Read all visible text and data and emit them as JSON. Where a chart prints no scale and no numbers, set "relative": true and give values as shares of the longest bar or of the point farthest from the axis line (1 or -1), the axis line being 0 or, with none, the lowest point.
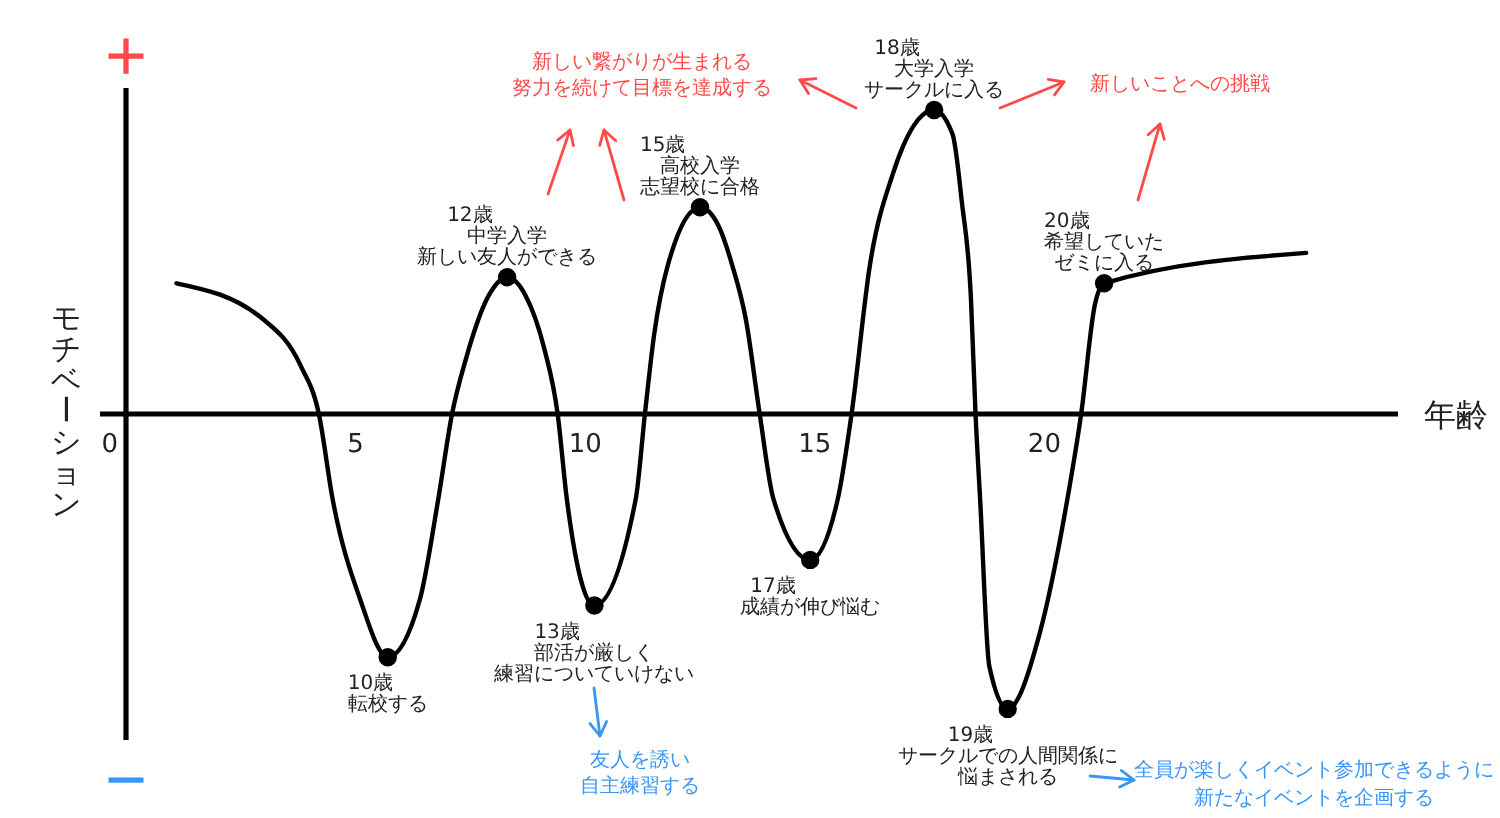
{
  "chart_data": {
    "type": "line",
    "relative": true,
    "xlabel": "年齢",
    "ylabel": "モチベーション",
    "xlim": [
      0,
      27.7
    ],
    "xticks": [
      0,
      5,
      10,
      15,
      20
    ],
    "series": [
      {
        "color": "#000000",
        "marker": "none",
        "x": [
          1.1,
          3.0,
          3.8,
          4.2,
          4.5,
          5.1,
          5.7,
          6.4,
          6.8,
          7.1,
          7.4,
          7.9,
          8.3,
          8.7,
          9.1,
          9.4,
          9.6,
          10.2,
          11.1,
          11.3,
          11.5,
          11.8,
          12.5,
          12.9,
          13.2,
          13.5,
          13.8,
          14.1,
          14.9,
          15.5,
          15.8,
          16.2,
          16.7,
          17.6,
          18.0,
          18.2,
          18.4,
          18.5,
          18.6,
          18.8,
          19.2,
          19.9,
          20.5,
          20.8,
          21.1,
          21.3,
          25.7
        ],
        "values": [
          0.43,
          0.31,
          0.16,
          0,
          -0.28,
          -0.61,
          -0.8,
          -0.61,
          -0.28,
          0,
          0.18,
          0.39,
          0.45,
          0.39,
          0.22,
          0,
          -0.28,
          -0.63,
          -0.28,
          0,
          0.26,
          0.49,
          0.68,
          0.62,
          0.49,
          0.31,
          0,
          -0.28,
          -0.48,
          -0.28,
          0,
          0.49,
          0.79,
          1.0,
          0.92,
          0.7,
          0.38,
          0,
          -0.28,
          -0.83,
          -0.97,
          -0.72,
          -0.28,
          0,
          0.36,
          0.43,
          0.53
        ]
      },
      {
        "type": "scatter",
        "color": "#000000",
        "marker": "circle",
        "x": [
          5.7,
          8.3,
          10.2,
          12.5,
          14.9,
          17.6,
          19.2,
          21.3
        ],
        "values": [
          -0.8,
          0.45,
          -0.63,
          0.68,
          -0.48,
          1.0,
          -0.97,
          0.43
        ]
      }
    ],
    "annotations": [
      {
        "text": "10歳",
        "x": 5.7,
        "y": -0.8
      },
      {
        "text": "転校する",
        "x": 5.7,
        "y": -0.8
      },
      {
        "text": "12歳",
        "x": 8.3,
        "y": 0.45
      },
      {
        "text": "中学入学",
        "x": 8.3,
        "y": 0.45
      },
      {
        "text": "新しい友人ができる",
        "x": 8.3,
        "y": 0.45
      },
      {
        "text": "13歳",
        "x": 10.2,
        "y": -0.63
      },
      {
        "text": "部活が厳しく",
        "x": 10.2,
        "y": -0.63
      },
      {
        "text": "練習についていけない",
        "x": 10.2,
        "y": -0.63
      },
      {
        "text": "15歳",
        "x": 12.5,
        "y": 0.68
      },
      {
        "text": "高校入学",
        "x": 12.5,
        "y": 0.68
      },
      {
        "text": "志望校に合格",
        "x": 12.5,
        "y": 0.68
      },
      {
        "text": "17歳",
        "x": 14.9,
        "y": -0.48
      },
      {
        "text": "成績が伸び悩む",
        "x": 14.9,
        "y": -0.48
      },
      {
        "text": "18歳",
        "x": 17.6,
        "y": 1.0
      },
      {
        "text": "大学入学",
        "x": 17.6,
        "y": 1.0
      },
      {
        "text": "サークルに入る",
        "x": 17.6,
        "y": 1.0
      },
      {
        "text": "19歳",
        "x": 19.2,
        "y": -0.97
      },
      {
        "text": "サークルでの人間関係に",
        "x": 19.2,
        "y": -0.97
      },
      {
        "text": "悩まされる",
        "x": 19.2,
        "y": -0.97
      },
      {
        "text": "20歳",
        "x": 21.3,
        "y": 0.43
      },
      {
        "text": "希望していた",
        "x": 21.3,
        "y": 0.43
      },
      {
        "text": "ゼミに入る",
        "x": 21.3,
        "y": 0.43
      },
      "+",
      "−",
      "新しい繋がりが生まれる",
      "努力を続けて目標を達成する",
      "新しいことへの挑戦",
      "友人を誘い",
      "自主練習する",
      "全員が楽しくイベント参加できるように",
      "新たなイベントを企画する"
    ]
  }
}
